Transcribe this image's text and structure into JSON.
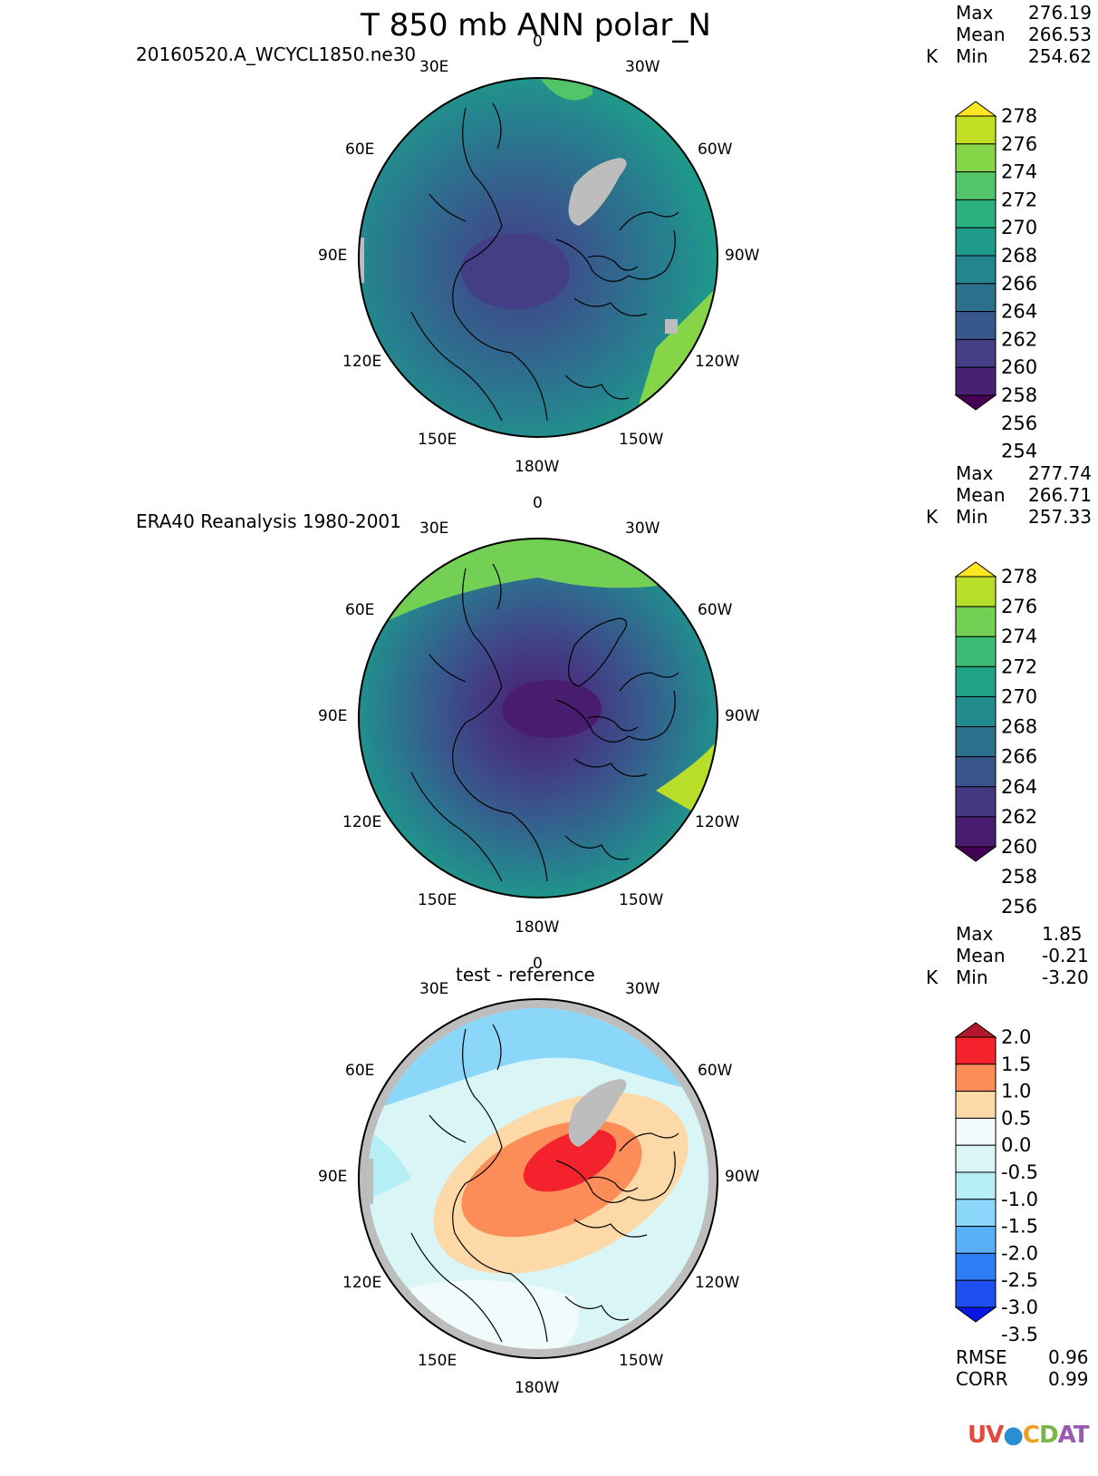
{
  "title": "T 850 mb ANN polar_N",
  "panels": [
    {
      "id": "test",
      "subtitle": "20160520.A_WCYCL1850.ne30",
      "stats": {
        "units": "K",
        "max": "276.19",
        "mean": "266.53",
        "min": "254.62"
      },
      "colorbar": {
        "labels": [
          "278",
          "276",
          "274",
          "272",
          "270",
          "268",
          "266",
          "264",
          "262",
          "260",
          "258",
          "256",
          "254"
        ],
        "colors": [
          "#fde725",
          "#c2df23",
          "#86d549",
          "#52c569",
          "#2ab07f",
          "#1e9b8a",
          "#25858e",
          "#2d708e",
          "#38588c",
          "#433e85",
          "#482173",
          "#440154"
        ]
      },
      "lon_labels": {
        "top": "0",
        "tl": "30E",
        "tr": "30W",
        "l60": "60E",
        "r60": "60W",
        "l90": "90E",
        "r90": "90W",
        "l120": "120E",
        "r120": "120W",
        "l150": "150E",
        "r150": "150W",
        "bottom": "180W"
      }
    },
    {
      "id": "reference",
      "subtitle": "ERA40 Reanalysis 1980-2001",
      "stats": {
        "units": "K",
        "max": "277.74",
        "mean": "266.71",
        "min": "257.33"
      },
      "colorbar": {
        "labels": [
          "278",
          "276",
          "274",
          "272",
          "270",
          "268",
          "266",
          "264",
          "262",
          "260",
          "258",
          "256"
        ],
        "colors": [
          "#fde725",
          "#b8de29",
          "#74d055",
          "#3cbb75",
          "#20a386",
          "#238a8d",
          "#2d708e",
          "#39568c",
          "#453781",
          "#481d6f",
          "#440154"
        ]
      },
      "lon_labels": {
        "top": "0",
        "tl": "30E",
        "tr": "30W",
        "l60": "60E",
        "r60": "60W",
        "l90": "90E",
        "r90": "90W",
        "l120": "120E",
        "r120": "120W",
        "l150": "150E",
        "r150": "150W",
        "bottom": "180W"
      }
    },
    {
      "id": "diff",
      "subtitle": "test - reference",
      "stats": {
        "units": "K",
        "max": "1.85",
        "mean": "-0.21",
        "min": "-3.20"
      },
      "metrics": {
        "rmse_label": "RMSE",
        "rmse": "0.96",
        "corr_label": "CORR",
        "corr": "0.99"
      },
      "colorbar": {
        "labels": [
          "2.0",
          "1.5",
          "1.0",
          "0.5",
          "0.0",
          "-0.5",
          "-1.0",
          "-1.5",
          "-2.0",
          "-2.5",
          "-3.0",
          "-3.5"
        ],
        "colors": [
          "#b2182b",
          "#f4222d",
          "#fc8d59",
          "#fdd9a7",
          "#f2fbfb",
          "#d9f5f5",
          "#b6eef6",
          "#8ad7fa",
          "#5ab0f7",
          "#2f7df5",
          "#1c4ef0",
          "#0a16e6"
        ]
      },
      "lon_labels": {
        "top": "0",
        "tl": "30E",
        "tr": "30W",
        "l60": "60E",
        "r60": "60W",
        "l90": "90E",
        "r90": "90W",
        "l120": "120E",
        "r120": "120W",
        "l150": "150E",
        "r150": "150W",
        "bottom": "180W"
      }
    }
  ],
  "logo": "UV-CDAT"
}
